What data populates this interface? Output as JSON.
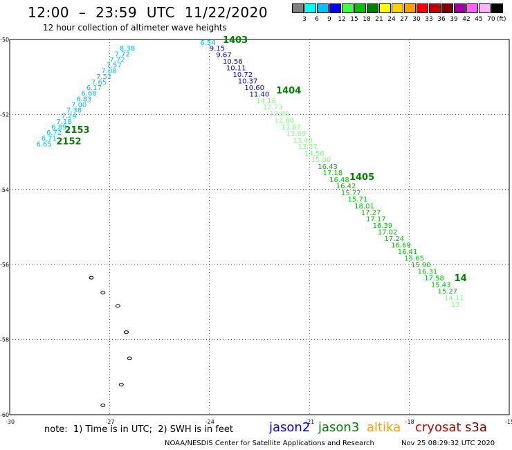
{
  "header": {
    "title": "12:00  –  23:59  UTC  11/22/2020",
    "subtitle": "12 hour collection of altimeter wave heights"
  },
  "legend": {
    "colors": [
      "#808080",
      "#00ffff",
      "#00bfff",
      "#0000ff",
      "#40ff40",
      "#00c000",
      "#008000",
      "#ffff00",
      "#ffd000",
      "#ffa000",
      "#ff0000",
      "#c00000",
      "#800000",
      "#a000a0",
      "#ff60ff",
      "#ffb0ff",
      "#000000"
    ],
    "labels": [
      "3",
      "6",
      "9",
      "12",
      "15",
      "18",
      "21",
      "24",
      "27",
      "30",
      "33",
      "36",
      "39",
      "42",
      "45",
      "70"
    ],
    "unit": "(ft)"
  },
  "axes": {
    "y_ticks": [
      "-50",
      "-52",
      "-54",
      "-56",
      "-58",
      "-60"
    ],
    "x_ticks": [
      "-30",
      "-27",
      "-24",
      "-21",
      "-18",
      "-15"
    ]
  },
  "footer": {
    "note": "note:  1) Time is in UTC;  2) SWH is in feet",
    "credit": "NOAA/NESDIS Center for Satellite Applications and Research",
    "timestamp": "Nov 25 08:29:32 UTC 2020"
  },
  "satellites": [
    {
      "name": "jason2",
      "color": "#0000ff"
    },
    {
      "name": "jason3",
      "color": "#008000"
    },
    {
      "name": "altika",
      "color": "#ffa000"
    },
    {
      "name": "cryosat",
      "color": "#c00000"
    },
    {
      "name": "s3a",
      "color": "#800000"
    }
  ],
  "track_labels": [
    {
      "text": "6.54",
      "lon": -24.28,
      "lat": -50.0,
      "color": "#00bfff"
    },
    {
      "text": "9.15",
      "lon": -24.0,
      "lat": -50.15,
      "color": "#0000ff"
    },
    {
      "text": "9.67",
      "lon": -23.8,
      "lat": -50.32,
      "color": "#0000ff"
    },
    {
      "text": "10.56",
      "lon": -23.6,
      "lat": -50.5,
      "color": "#0000ff"
    },
    {
      "text": "10.11",
      "lon": -23.5,
      "lat": -50.67,
      "color": "#0000ff"
    },
    {
      "text": "10.72",
      "lon": -23.3,
      "lat": -50.85,
      "color": "#0000ff"
    },
    {
      "text": "10.37",
      "lon": -23.15,
      "lat": -51.02,
      "color": "#0000ff"
    },
    {
      "text": "10.60",
      "lon": -22.95,
      "lat": -51.2,
      "color": "#0000ff"
    },
    {
      "text": "11.40",
      "lon": -22.8,
      "lat": -51.37,
      "color": "#0000ff"
    },
    {
      "text": "14.16",
      "lon": -22.6,
      "lat": -51.55,
      "color": "#80ff80"
    },
    {
      "text": "12.73",
      "lon": -22.4,
      "lat": -51.72,
      "color": "#80ff80"
    },
    {
      "text": "12.80",
      "lon": -22.2,
      "lat": -51.9,
      "color": "#80ff80"
    },
    {
      "text": "12.66",
      "lon": -22.05,
      "lat": -52.07,
      "color": "#80ff80"
    },
    {
      "text": "13.67",
      "lon": -21.85,
      "lat": -52.25,
      "color": "#80ff80"
    },
    {
      "text": "13.69",
      "lon": -21.7,
      "lat": -52.42,
      "color": "#80ff80"
    },
    {
      "text": "13.40",
      "lon": -21.5,
      "lat": -52.6,
      "color": "#80ff80"
    },
    {
      "text": "13.37",
      "lon": -21.35,
      "lat": -52.77,
      "color": "#80ff80"
    },
    {
      "text": "14.56",
      "lon": -21.15,
      "lat": -52.95,
      "color": "#80ff80"
    },
    {
      "text": "15.00",
      "lon": -20.95,
      "lat": -53.12,
      "color": "#80ff80"
    },
    {
      "text": "16.43",
      "lon": -20.75,
      "lat": -53.3,
      "color": "#00c000"
    },
    {
      "text": "17.18",
      "lon": -20.6,
      "lat": -53.47,
      "color": "#00c000"
    },
    {
      "text": "16.48",
      "lon": -20.4,
      "lat": -53.65,
      "color": "#00c000"
    },
    {
      "text": "16.42",
      "lon": -20.2,
      "lat": -53.82,
      "color": "#00c000"
    },
    {
      "text": "15.77",
      "lon": -20.05,
      "lat": -54.0,
      "color": "#00c000"
    },
    {
      "text": "15.71",
      "lon": -19.85,
      "lat": -54.17,
      "color": "#00c000"
    },
    {
      "text": "18.01",
      "lon": -19.65,
      "lat": -54.35,
      "color": "#00c000"
    },
    {
      "text": "17.27",
      "lon": -19.45,
      "lat": -54.52,
      "color": "#00c000"
    },
    {
      "text": "17.17",
      "lon": -19.3,
      "lat": -54.7,
      "color": "#00c000"
    },
    {
      "text": "16.39",
      "lon": -19.1,
      "lat": -54.87,
      "color": "#00c000"
    },
    {
      "text": "17.02",
      "lon": -18.95,
      "lat": -55.05,
      "color": "#00c000"
    },
    {
      "text": "17.24",
      "lon": -18.75,
      "lat": -55.22,
      "color": "#00c000"
    },
    {
      "text": "16.69",
      "lon": -18.55,
      "lat": -55.4,
      "color": "#00c000"
    },
    {
      "text": "16.41",
      "lon": -18.35,
      "lat": -55.57,
      "color": "#00c000"
    },
    {
      "text": "15.65",
      "lon": -18.15,
      "lat": -55.75,
      "color": "#00c000"
    },
    {
      "text": "15.90",
      "lon": -17.95,
      "lat": -55.92,
      "color": "#00c000"
    },
    {
      "text": "16.31",
      "lon": -17.75,
      "lat": -56.1,
      "color": "#00c000"
    },
    {
      "text": "17.58",
      "lon": -17.55,
      "lat": -56.27,
      "color": "#00c000"
    },
    {
      "text": "15.43",
      "lon": -17.35,
      "lat": -56.45,
      "color": "#00c000"
    },
    {
      "text": "15.27",
      "lon": -17.15,
      "lat": -56.62,
      "color": "#00c000"
    },
    {
      "text": "14.11",
      "lon": -16.95,
      "lat": -56.8,
      "color": "#80ff80"
    },
    {
      "text": "13.",
      "lon": -16.75,
      "lat": -56.97,
      "color": "#80ff80"
    },
    {
      "text": "8.38",
      "lon": -26.7,
      "lat": -50.15,
      "color": "#00bfff"
    },
    {
      "text": "7.72",
      "lon": -26.85,
      "lat": -50.3,
      "color": "#00bfff"
    },
    {
      "text": "7.72",
      "lon": -27.0,
      "lat": -50.45,
      "color": "#00bfff"
    },
    {
      "text": "7.57",
      "lon": -27.1,
      "lat": -50.6,
      "color": "#00bfff"
    },
    {
      "text": "7.08",
      "lon": -27.25,
      "lat": -50.75,
      "color": "#00bfff"
    },
    {
      "text": "7.52",
      "lon": -27.4,
      "lat": -50.9,
      "color": "#00bfff"
    },
    {
      "text": "7.65",
      "lon": -27.55,
      "lat": -51.05,
      "color": "#00bfff"
    },
    {
      "text": "6.17",
      "lon": -27.7,
      "lat": -51.2,
      "color": "#00bfff"
    },
    {
      "text": "6.68",
      "lon": -27.85,
      "lat": -51.35,
      "color": "#00bfff"
    },
    {
      "text": "6.83",
      "lon": -28.0,
      "lat": -51.5,
      "color": "#00bfff"
    },
    {
      "text": "7.00",
      "lon": -28.15,
      "lat": -51.65,
      "color": "#00bfff"
    },
    {
      "text": "7.38",
      "lon": -28.3,
      "lat": -51.8,
      "color": "#00bfff"
    },
    {
      "text": "7.24",
      "lon": -28.45,
      "lat": -51.95,
      "color": "#00bfff"
    },
    {
      "text": "7.18",
      "lon": -28.6,
      "lat": -52.1,
      "color": "#00bfff"
    },
    {
      "text": "6.89",
      "lon": -28.75,
      "lat": -52.25,
      "color": "#00bfff"
    },
    {
      "text": "6.72",
      "lon": -28.9,
      "lat": -52.4,
      "color": "#00bfff"
    },
    {
      "text": "6.71",
      "lon": -29.05,
      "lat": -52.55,
      "color": "#00bfff"
    },
    {
      "text": "6.65",
      "lon": -29.2,
      "lat": -52.7,
      "color": "#00bfff"
    }
  ],
  "time_labels": [
    {
      "text": "1403",
      "lon": -23.6,
      "lat": -50.0
    },
    {
      "text": "1404",
      "lon": -22.0,
      "lat": -51.35
    },
    {
      "text": "1405",
      "lon": -19.8,
      "lat": -53.65
    },
    {
      "text": "14",
      "lon": -16.65,
      "lat": -56.35
    },
    {
      "text": "2153",
      "lon": -28.35,
      "lat": -52.4
    },
    {
      "text": "2152",
      "lon": -28.6,
      "lat": -52.7
    }
  ],
  "islands": [
    {
      "lon": -27.55,
      "lat": -56.35
    },
    {
      "lon": -27.2,
      "lat": -56.75
    },
    {
      "lon": -26.75,
      "lat": -57.1
    },
    {
      "lon": -26.5,
      "lat": -57.8
    },
    {
      "lon": -26.4,
      "lat": -58.5
    },
    {
      "lon": -26.65,
      "lat": -59.2
    },
    {
      "lon": -27.2,
      "lat": -59.75
    }
  ]
}
